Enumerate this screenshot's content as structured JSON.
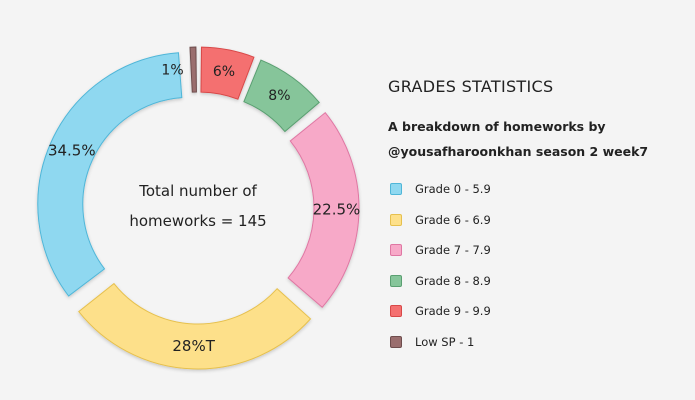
{
  "chart_data": {
    "type": "pie",
    "title": "GRADES STATISTICS",
    "subtitle": [
      "A breakdown of homeworks by",
      "@yousafharoonkhan season 2 week7"
    ],
    "center_text": [
      "Total number of",
      "homeworks = 145"
    ],
    "slices": [
      {
        "name": "Grade 0 - 5.9",
        "value": 34.5,
        "label": "34.5%",
        "color": "#8fd8f0",
        "stroke": "#4fb6d8"
      },
      {
        "name": "Grade 6 - 6.9",
        "value": 28,
        "label": "28%T",
        "color": "#fde08a",
        "stroke": "#e6c04e"
      },
      {
        "name": "Grade 7 - 7.9",
        "value": 22.5,
        "label": "22.5%",
        "color": "#f7a9c8",
        "stroke": "#df77a3"
      },
      {
        "name": "Grade 8 - 8.9",
        "value": 8,
        "label": "8%",
        "color": "#86c59a",
        "stroke": "#5a9f71"
      },
      {
        "name": "Grade 9 - 9.9",
        "value": 6,
        "label": "6%",
        "color": "#f47070",
        "stroke": "#d84848"
      },
      {
        "name": "Low SP - 1",
        "value": 1,
        "label": "1%",
        "color": "#9a6e6e",
        "stroke": "#6e4d4d"
      }
    ],
    "legend_position": "right"
  }
}
